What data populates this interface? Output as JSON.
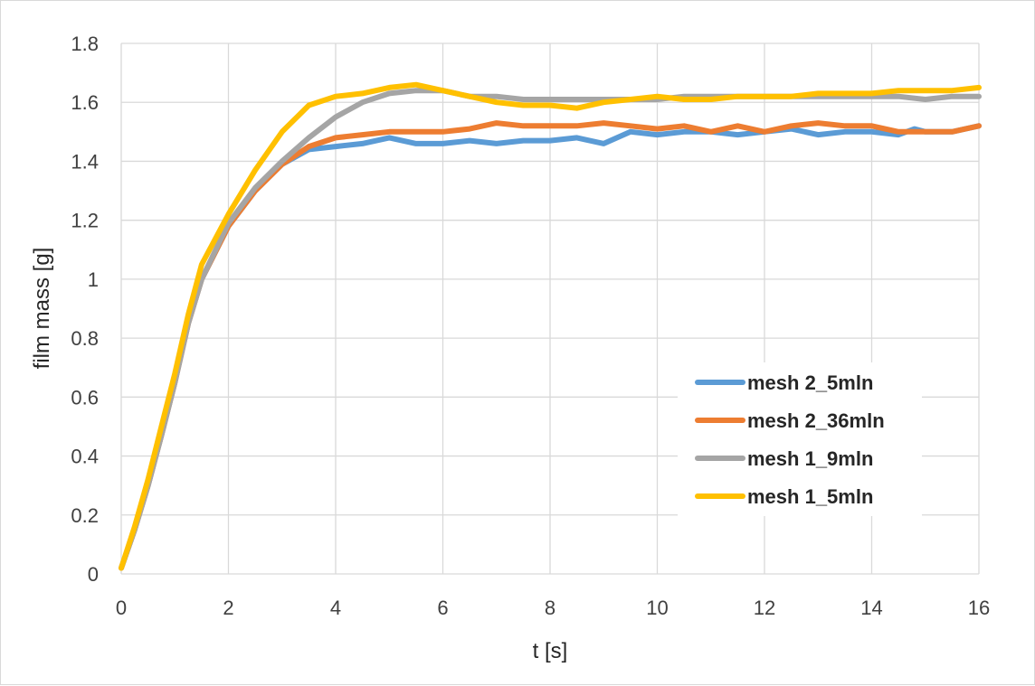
{
  "chart_data": {
    "type": "line",
    "title": "",
    "xlabel": "t [s]",
    "ylabel": "film mass [g]",
    "xlim": [
      0,
      16
    ],
    "ylim": [
      0,
      1.8
    ],
    "x_ticks": [
      "0",
      "2",
      "4",
      "6",
      "8",
      "10",
      "12",
      "14",
      "16"
    ],
    "y_ticks": [
      "0",
      "0.2",
      "0.4",
      "0.6",
      "0.8",
      "1",
      "1.2",
      "1.4",
      "1.6",
      "1.8"
    ],
    "grid": true,
    "legend_position": "right-middle",
    "series": [
      {
        "name": "mesh 2_5mln",
        "color": "#5b9bd5",
        "points": [
          [
            0,
            0.02
          ],
          [
            0.25,
            0.15
          ],
          [
            0.5,
            0.3
          ],
          [
            0.75,
            0.47
          ],
          [
            1,
            0.65
          ],
          [
            1.25,
            0.85
          ],
          [
            1.5,
            1.0
          ],
          [
            2,
            1.18
          ],
          [
            2.5,
            1.3
          ],
          [
            3,
            1.39
          ],
          [
            3.5,
            1.44
          ],
          [
            4,
            1.45
          ],
          [
            4.5,
            1.46
          ],
          [
            5,
            1.48
          ],
          [
            5.5,
            1.46
          ],
          [
            6,
            1.46
          ],
          [
            6.5,
            1.47
          ],
          [
            7,
            1.46
          ],
          [
            7.5,
            1.47
          ],
          [
            8,
            1.47
          ],
          [
            8.5,
            1.48
          ],
          [
            9,
            1.46
          ],
          [
            9.5,
            1.5
          ],
          [
            10,
            1.49
          ],
          [
            10.5,
            1.5
          ],
          [
            11,
            1.5
          ],
          [
            11.5,
            1.49
          ],
          [
            12,
            1.5
          ],
          [
            12.5,
            1.51
          ],
          [
            13,
            1.49
          ],
          [
            13.5,
            1.5
          ],
          [
            14,
            1.5
          ],
          [
            14.5,
            1.49
          ],
          [
            14.8,
            1.51
          ],
          [
            15,
            1.5
          ],
          [
            15.5,
            1.5
          ],
          [
            16,
            1.52
          ]
        ]
      },
      {
        "name": "mesh 2_36mln",
        "color": "#ed7d31",
        "points": [
          [
            0,
            0.02
          ],
          [
            0.25,
            0.15
          ],
          [
            0.5,
            0.3
          ],
          [
            0.75,
            0.47
          ],
          [
            1,
            0.65
          ],
          [
            1.25,
            0.85
          ],
          [
            1.5,
            1.0
          ],
          [
            2,
            1.18
          ],
          [
            2.5,
            1.3
          ],
          [
            3,
            1.39
          ],
          [
            3.5,
            1.45
          ],
          [
            4,
            1.48
          ],
          [
            4.5,
            1.49
          ],
          [
            5,
            1.5
          ],
          [
            5.5,
            1.5
          ],
          [
            6,
            1.5
          ],
          [
            6.5,
            1.51
          ],
          [
            7,
            1.53
          ],
          [
            7.5,
            1.52
          ],
          [
            8,
            1.52
          ],
          [
            8.5,
            1.52
          ],
          [
            9,
            1.53
          ],
          [
            9.5,
            1.52
          ],
          [
            10,
            1.51
          ],
          [
            10.5,
            1.52
          ],
          [
            11,
            1.5
          ],
          [
            11.5,
            1.52
          ],
          [
            12,
            1.5
          ],
          [
            12.5,
            1.52
          ],
          [
            13,
            1.53
          ],
          [
            13.5,
            1.52
          ],
          [
            14,
            1.52
          ],
          [
            14.5,
            1.5
          ],
          [
            15,
            1.5
          ],
          [
            15.5,
            1.5
          ],
          [
            16,
            1.52
          ]
        ]
      },
      {
        "name": "mesh 1_9mln",
        "color": "#a5a5a5",
        "points": [
          [
            0,
            0.02
          ],
          [
            0.25,
            0.15
          ],
          [
            0.5,
            0.3
          ],
          [
            0.75,
            0.47
          ],
          [
            1,
            0.65
          ],
          [
            1.25,
            0.85
          ],
          [
            1.5,
            1.0
          ],
          [
            2,
            1.19
          ],
          [
            2.5,
            1.31
          ],
          [
            3,
            1.4
          ],
          [
            3.5,
            1.48
          ],
          [
            4,
            1.55
          ],
          [
            4.5,
            1.6
          ],
          [
            5,
            1.63
          ],
          [
            5.5,
            1.64
          ],
          [
            6,
            1.64
          ],
          [
            6.5,
            1.62
          ],
          [
            7,
            1.62
          ],
          [
            7.5,
            1.61
          ],
          [
            8,
            1.61
          ],
          [
            8.5,
            1.61
          ],
          [
            9,
            1.61
          ],
          [
            9.5,
            1.61
          ],
          [
            10,
            1.61
          ],
          [
            10.5,
            1.62
          ],
          [
            11,
            1.62
          ],
          [
            11.5,
            1.62
          ],
          [
            12,
            1.62
          ],
          [
            12.5,
            1.62
          ],
          [
            13,
            1.62
          ],
          [
            13.5,
            1.62
          ],
          [
            14,
            1.62
          ],
          [
            14.5,
            1.62
          ],
          [
            15,
            1.61
          ],
          [
            15.5,
            1.62
          ],
          [
            16,
            1.62
          ]
        ]
      },
      {
        "name": "mesh 1_5mln",
        "color": "#ffc000",
        "points": [
          [
            0,
            0.02
          ],
          [
            0.25,
            0.16
          ],
          [
            0.5,
            0.32
          ],
          [
            0.75,
            0.5
          ],
          [
            1,
            0.68
          ],
          [
            1.25,
            0.88
          ],
          [
            1.5,
            1.05
          ],
          [
            2,
            1.22
          ],
          [
            2.5,
            1.37
          ],
          [
            3,
            1.5
          ],
          [
            3.5,
            1.59
          ],
          [
            4,
            1.62
          ],
          [
            4.5,
            1.63
          ],
          [
            5,
            1.65
          ],
          [
            5.5,
            1.66
          ],
          [
            6,
            1.64
          ],
          [
            6.5,
            1.62
          ],
          [
            7,
            1.6
          ],
          [
            7.5,
            1.59
          ],
          [
            8,
            1.59
          ],
          [
            8.5,
            1.58
          ],
          [
            9,
            1.6
          ],
          [
            9.5,
            1.61
          ],
          [
            10,
            1.62
          ],
          [
            10.5,
            1.61
          ],
          [
            11,
            1.61
          ],
          [
            11.5,
            1.62
          ],
          [
            12,
            1.62
          ],
          [
            12.5,
            1.62
          ],
          [
            13,
            1.63
          ],
          [
            13.5,
            1.63
          ],
          [
            14,
            1.63
          ],
          [
            14.5,
            1.64
          ],
          [
            15,
            1.64
          ],
          [
            15.5,
            1.64
          ],
          [
            16,
            1.65
          ]
        ]
      }
    ]
  }
}
